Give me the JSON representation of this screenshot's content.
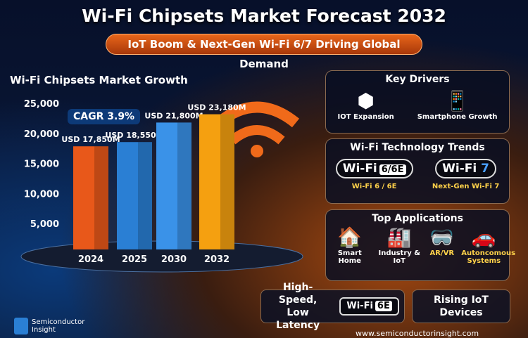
{
  "header": {
    "title": "Wi-Fi Chipsets Market Forecast 2032",
    "subtitle": "IoT Boom & Next-Gen Wi-Fi 6/7 Driving Global Demand"
  },
  "chart_data": {
    "type": "bar",
    "title": "Wi-Fi Chipsets Market Growth",
    "categories": [
      "2024",
      "2025",
      "2030",
      "2032"
    ],
    "values": [
      17850,
      18550,
      21800,
      23180
    ],
    "data_labels": [
      "USD 17,850M",
      "USD 18,550M",
      "USD 21,800M",
      "USD 23,180M"
    ],
    "yticks": [
      "5,000",
      "10,000",
      "15,000",
      "20,000",
      "25,000"
    ],
    "ytick_values": [
      5000,
      10000,
      15000,
      20000,
      25000
    ],
    "ylim": [
      0,
      25000
    ],
    "annotation": "CAGR 3.9%",
    "colors": [
      "#e8581a",
      "#2a7fd4",
      "#3a92e8",
      "#f5a010"
    ],
    "grid": false
  },
  "key_drivers": {
    "title": "Key Drivers",
    "items": [
      {
        "label": "IOT Expansion",
        "icon": "iot-chip-icon"
      },
      {
        "label": "Smartphone Growth",
        "icon": "smartphone-icon"
      }
    ]
  },
  "trends": {
    "title": "Wi-Fi Technology Trends",
    "items": [
      {
        "badge": "Wi-Fi",
        "badge_tag": "6/6E",
        "label": "Wi-Fi 6 / 6E"
      },
      {
        "badge": "Wi-Fi",
        "badge_tag": "7",
        "label": "Next-Gen Wi-Fi 7"
      }
    ]
  },
  "applications": {
    "title": "Top Applications",
    "items": [
      {
        "label": "Smart Home",
        "icon": "house-icon"
      },
      {
        "label": "Industry & IoT",
        "icon": "factory-icon"
      },
      {
        "label": "AR/VR",
        "icon": "vr-headset-icon"
      },
      {
        "label": "Autoncomous Systems",
        "icon": "car-icon"
      }
    ]
  },
  "bottom": {
    "speed": "High-Speed, Low Latency",
    "badge": "Wi-Fi",
    "badge_tag": "6E",
    "rising": "Rising IoT Devices",
    "logo_line1": "Semiconductor",
    "logo_line2": "Insight",
    "url": "www.semiconductorinsight.com"
  }
}
